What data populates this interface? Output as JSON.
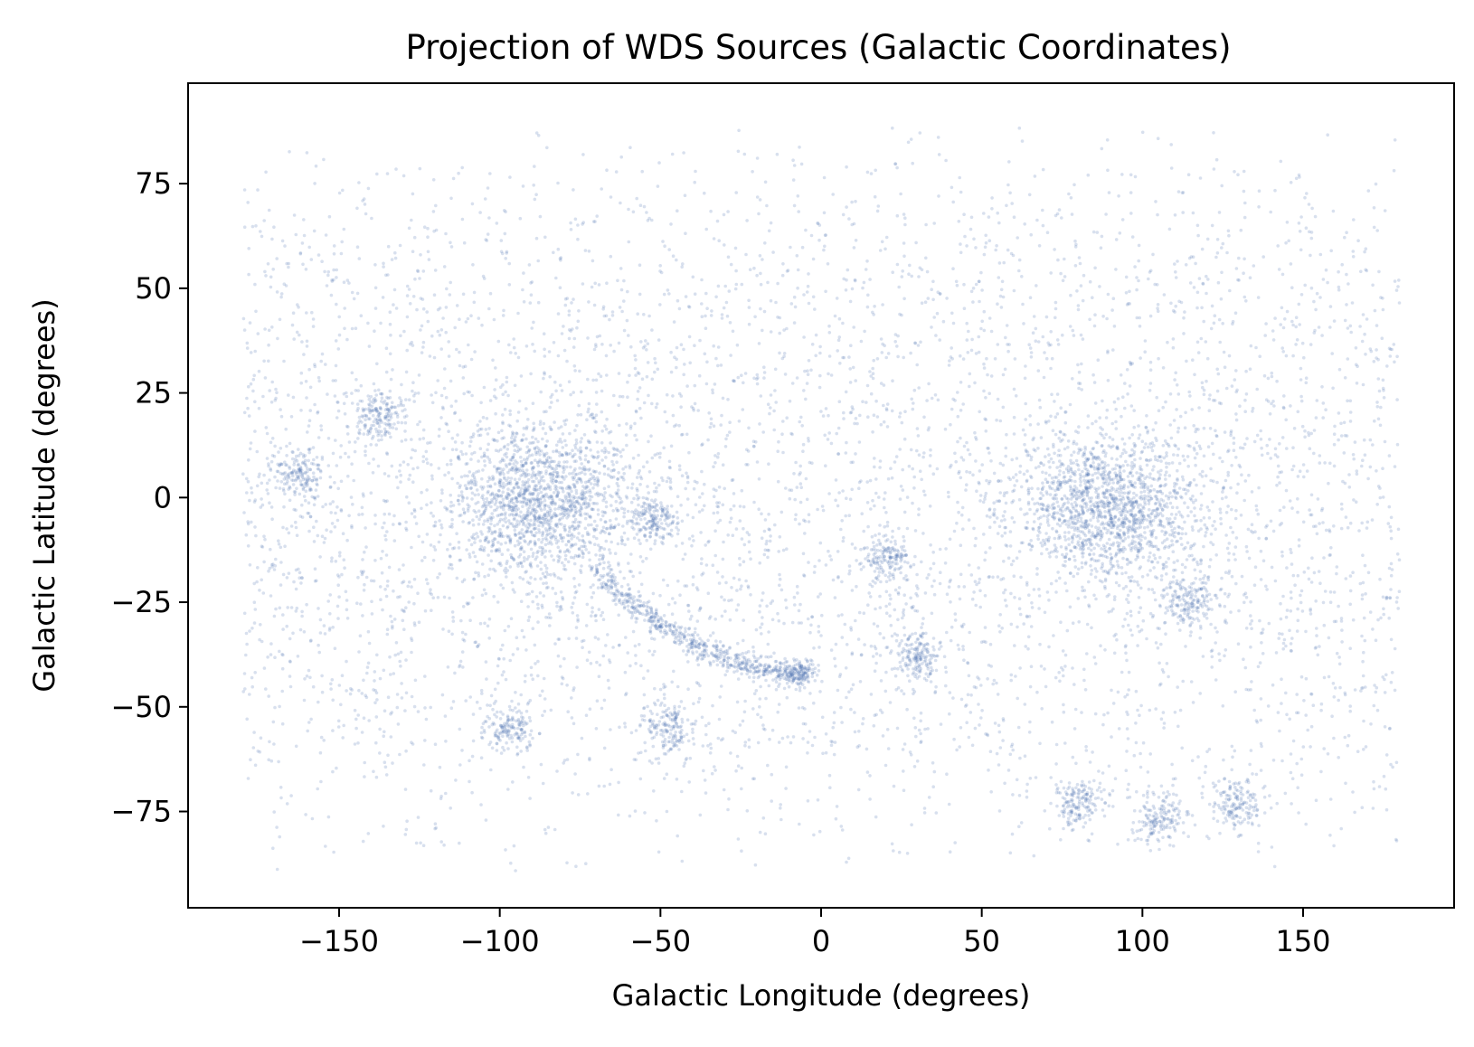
{
  "chart_data": {
    "type": "scatter",
    "title": "Projection of WDS Sources (Galactic Coordinates)",
    "xlabel": "Galactic Longitude (degrees)",
    "ylabel": "Galactic Latitude (degrees)",
    "xlim": [
      -197,
      197
    ],
    "ylim": [
      -98,
      99
    ],
    "xticks": [
      -150,
      -100,
      -50,
      0,
      50,
      100,
      150
    ],
    "xtick_labels": [
      "−150",
      "−100",
      "−50",
      "0",
      "50",
      "100",
      "150"
    ],
    "yticks": [
      -75,
      -50,
      -25,
      0,
      25,
      50,
      75
    ],
    "ytick_labels": [
      "−75",
      "−50",
      "−25",
      "0",
      "25",
      "50",
      "75"
    ],
    "grid": false,
    "legend": "none",
    "point_color": "#4c72b0",
    "point_alpha": 0.22,
    "x_range_of_points": [
      -180,
      180
    ],
    "y_range_of_points": [
      -90,
      90
    ],
    "series": [
      {
        "description_of_density": "uniform background across full sky",
        "dense_clusters": [
          {
            "x": -88,
            "y": 0
          },
          {
            "x": 90,
            "y": -2
          },
          {
            "x": -52,
            "y": -5
          },
          {
            "x": 20,
            "y": -14
          },
          {
            "x": -163,
            "y": 6
          },
          {
            "x": -138,
            "y": 20
          },
          {
            "x": -97,
            "y": -55
          },
          {
            "x": -48,
            "y": -55
          },
          {
            "x": 30,
            "y": -38
          },
          {
            "x": 80,
            "y": -73
          },
          {
            "x": 105,
            "y": -77
          },
          {
            "x": 130,
            "y": -73
          },
          {
            "x": 115,
            "y": -25
          }
        ],
        "dense_arc": [
          {
            "x": -70,
            "y": -18
          },
          {
            "x": -55,
            "y": -28
          },
          {
            "x": -40,
            "y": -35
          },
          {
            "x": -25,
            "y": -40
          },
          {
            "x": -10,
            "y": -42
          },
          {
            "x": -3,
            "y": -42
          }
        ]
      }
    ]
  }
}
